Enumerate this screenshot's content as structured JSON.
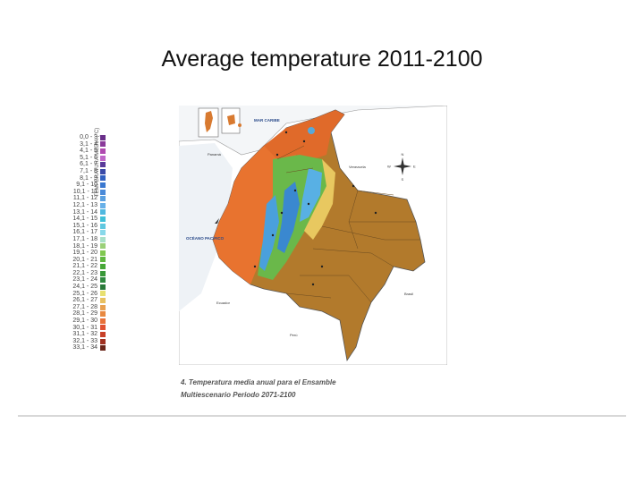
{
  "title": "Average temperature 2011-2100",
  "legend": {
    "axis_label": "TEMPERATURA MEDIA (°C)",
    "items": [
      {
        "label": "0,0 - 3",
        "color": "#6a2f8a"
      },
      {
        "label": "3,1 - 4",
        "color": "#8a3a9a"
      },
      {
        "label": "4,1 - 5",
        "color": "#b04ab0"
      },
      {
        "label": "5,1 - 6",
        "color": "#c066c8"
      },
      {
        "label": "6,1 - 7",
        "color": "#5a3a9a"
      },
      {
        "label": "7,1 - 8",
        "color": "#3a4aa8"
      },
      {
        "label": "8,1 - 9",
        "color": "#3060c0"
      },
      {
        "label": "9,1 - 10",
        "color": "#3a78d0"
      },
      {
        "label": "10,1 - 11",
        "color": "#4a8ad8"
      },
      {
        "label": "11,1 - 12",
        "color": "#5aa0e0"
      },
      {
        "label": "12,1 - 13",
        "color": "#68b0e8"
      },
      {
        "label": "13,1 - 14",
        "color": "#50b8e0"
      },
      {
        "label": "14,1 - 15",
        "color": "#40c0d8"
      },
      {
        "label": "15,1 - 16",
        "color": "#60c8e0"
      },
      {
        "label": "16,1 - 17",
        "color": "#88d8ea"
      },
      {
        "label": "17,1 - 18",
        "color": "#a8e0c8"
      },
      {
        "label": "18,1 - 19",
        "color": "#9ad078"
      },
      {
        "label": "19,1 - 20",
        "color": "#80c850"
      },
      {
        "label": "20,1 - 21",
        "color": "#60b840"
      },
      {
        "label": "21,1 - 22",
        "color": "#48a838"
      },
      {
        "label": "22,1 - 23",
        "color": "#389838"
      },
      {
        "label": "23,1 - 24",
        "color": "#308a40"
      },
      {
        "label": "24,1 - 25",
        "color": "#2a7a3a"
      },
      {
        "label": "25,1 - 26",
        "color": "#e8e070"
      },
      {
        "label": "26,1 - 27",
        "color": "#e8c060"
      },
      {
        "label": "27,1 - 28",
        "color": "#e8a050"
      },
      {
        "label": "28,1 - 29",
        "color": "#e88840"
      },
      {
        "label": "29,1 - 30",
        "color": "#e87038"
      },
      {
        "label": "30,1 - 31",
        "color": "#e05030"
      },
      {
        "label": "31,1 - 32",
        "color": "#c84028"
      },
      {
        "label": "32,1 - 33",
        "color": "#a03020"
      },
      {
        "label": "33,1 - 34",
        "color": "#6a2418"
      }
    ]
  },
  "map": {
    "country_color": "#b27a2c",
    "land_color": "#ffffff",
    "border_color": "#888888",
    "labels": {
      "venezuela": "Venezuela",
      "panama": "Panamá",
      "ecuador": "Ecuador",
      "peru": "Perú",
      "brasil": "Brasil",
      "pacific": "OCÉANO PACÍFICO",
      "caribbean": "MAR CARIBE"
    },
    "compass": {
      "n": "N",
      "s": "S",
      "e": "E",
      "w": "W"
    }
  },
  "caption": {
    "line1": "4. Temperatura media anual para el Ensamble",
    "line2": "Multiescenario Periodo 2071-2100"
  }
}
